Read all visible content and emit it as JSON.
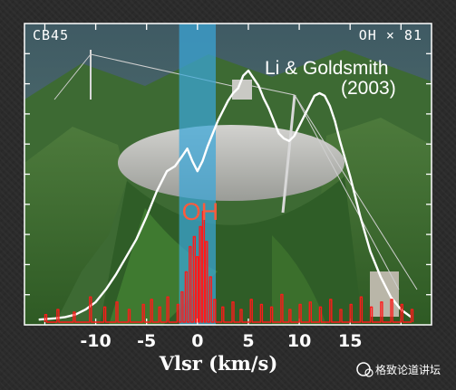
{
  "chart_data": {
    "type": "line",
    "xlabel": "Vlsr (km/s)",
    "xlim": [
      -17,
      23
    ],
    "ylim": [
      0,
      1
    ],
    "x_ticks": [
      -10,
      -5,
      0,
      5,
      10,
      15
    ],
    "grid": false,
    "corner_left": "CB45",
    "corner_right": "OH × 81",
    "reference": [
      "Li & Goldsmith",
      "(2003)"
    ],
    "highlight": {
      "x_range": [
        -1.8,
        1.8
      ],
      "label": "OH",
      "color": "#3aa6d8"
    },
    "series": [
      {
        "color": "#ffffff",
        "x": [
          -15.6,
          -14,
          -13,
          -12,
          -11,
          -10,
          -9,
          -8,
          -7,
          -6,
          -5,
          -4,
          -3,
          -2.2,
          -1.5,
          -1,
          -0.5,
          0,
          0.5,
          1,
          1.5,
          2,
          2.5,
          3,
          3.5,
          4,
          4.5,
          5,
          5.5,
          6,
          6.5,
          7,
          7.5,
          8,
          8.5,
          9,
          9.5,
          10,
          10.5,
          11,
          11.5,
          12,
          12.5,
          13,
          13.5,
          14,
          15,
          16,
          17,
          18,
          19,
          20,
          21
        ],
        "values": [
          0.01,
          0.015,
          0.02,
          0.03,
          0.05,
          0.08,
          0.13,
          0.19,
          0.26,
          0.33,
          0.42,
          0.52,
          0.6,
          0.62,
          0.66,
          0.69,
          0.64,
          0.6,
          0.64,
          0.7,
          0.75,
          0.8,
          0.84,
          0.88,
          0.91,
          0.93,
          0.98,
          1.0,
          0.97,
          0.94,
          0.89,
          0.85,
          0.8,
          0.75,
          0.73,
          0.72,
          0.74,
          0.78,
          0.82,
          0.86,
          0.9,
          0.91,
          0.9,
          0.86,
          0.8,
          0.72,
          0.58,
          0.42,
          0.28,
          0.18,
          0.1,
          0.05,
          0.02
        ]
      },
      {
        "color": "#ff1a1a",
        "x": [
          -15.0,
          -13.8,
          -12.2,
          -10.6,
          -9.2,
          -8.0,
          -6.8,
          -5.4,
          -4.6,
          -3.8,
          -3.0,
          -2.0,
          -1.6,
          -1.2,
          -0.8,
          -0.4,
          -0.1,
          0.2,
          0.5,
          0.8,
          1.2,
          1.6,
          2.4,
          3.4,
          4.2,
          5.2,
          6.2,
          7.2,
          8.2,
          9.0,
          10.0,
          11.0,
          12.0,
          13.0,
          14.0,
          15.0,
          16.0,
          17.0,
          18.0,
          19.0,
          20.0,
          21.0
        ],
        "values": [
          0.03,
          0.05,
          0.04,
          0.1,
          0.06,
          0.08,
          0.05,
          0.07,
          0.09,
          0.06,
          0.1,
          0.07,
          0.12,
          0.2,
          0.3,
          0.34,
          0.26,
          0.38,
          0.44,
          0.32,
          0.18,
          0.09,
          0.06,
          0.08,
          0.05,
          0.09,
          0.07,
          0.06,
          0.11,
          0.05,
          0.07,
          0.08,
          0.06,
          0.09,
          0.05,
          0.07,
          0.1,
          0.06,
          0.08,
          0.09,
          0.07,
          0.05
        ]
      }
    ]
  },
  "watermark": "格致论道讲坛"
}
